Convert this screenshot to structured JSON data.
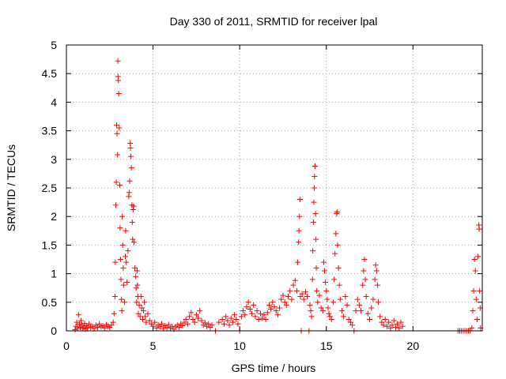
{
  "chart_data": {
    "type": "scatter",
    "title": "Day 330 of 2011, SRMTID for receiver lpal",
    "xlabel": "GPS time / hours",
    "ylabel": "SRMTID / TECUs",
    "xlim": [
      0,
      24
    ],
    "ylim": [
      0,
      5
    ],
    "xticks": [
      0,
      5,
      10,
      15,
      20
    ],
    "yticks": [
      0,
      0.5,
      1,
      1.5,
      2,
      2.5,
      3,
      3.5,
      4,
      4.5,
      5
    ],
    "ytick_labels": [
      "0",
      "0.5",
      "1",
      "1.5",
      "2",
      "2.5",
      "3",
      "3.5",
      "4",
      "4.5",
      "5"
    ],
    "grid": true,
    "marker": "+",
    "color": "#ff0000",
    "series": [
      {
        "name": "SRMTID",
        "points": [
          [
            0.5,
            0.02
          ],
          [
            0.55,
            0.08
          ],
          [
            0.6,
            0.15
          ],
          [
            0.65,
            0.05
          ],
          [
            0.7,
            0.28
          ],
          [
            0.75,
            0.12
          ],
          [
            0.8,
            0.06
          ],
          [
            0.85,
            0.18
          ],
          [
            0.9,
            0.1
          ],
          [
            0.95,
            0.04
          ],
          [
            1.0,
            0.07
          ],
          [
            1.05,
            0.13
          ],
          [
            1.1,
            0.03
          ],
          [
            1.15,
            0.09
          ],
          [
            1.2,
            0.05
          ],
          [
            1.3,
            0.12
          ],
          [
            1.4,
            0.06
          ],
          [
            1.5,
            0.08
          ],
          [
            1.6,
            0.04
          ],
          [
            1.7,
            0.1
          ],
          [
            1.8,
            0.06
          ],
          [
            1.9,
            0.12
          ],
          [
            2.0,
            0.07
          ],
          [
            2.1,
            0.09
          ],
          [
            2.2,
            0.05
          ],
          [
            2.3,
            0.11
          ],
          [
            2.4,
            0.08
          ],
          [
            2.5,
            0.06
          ],
          [
            2.6,
            0.1
          ],
          [
            2.7,
            0.15
          ],
          [
            2.75,
            0.3
          ],
          [
            2.8,
            0.6
          ],
          [
            2.82,
            1.2
          ],
          [
            2.85,
            2.2
          ],
          [
            2.88,
            2.6
          ],
          [
            2.9,
            3.6
          ],
          [
            2.92,
            3.45
          ],
          [
            2.95,
            3.08
          ],
          [
            2.97,
            4.72
          ],
          [
            2.98,
            4.45
          ],
          [
            3.0,
            4.38
          ],
          [
            3.02,
            4.15
          ],
          [
            3.05,
            3.55
          ],
          [
            3.08,
            2.55
          ],
          [
            3.1,
            1.8
          ],
          [
            3.12,
            1.25
          ],
          [
            3.15,
            0.9
          ],
          [
            3.18,
            0.55
          ],
          [
            3.2,
            0.35
          ],
          [
            3.22,
            2.0
          ],
          [
            3.25,
            1.5
          ],
          [
            3.28,
            1.1
          ],
          [
            3.3,
            0.8
          ],
          [
            3.35,
            0.5
          ],
          [
            3.4,
            1.3
          ],
          [
            3.42,
            1.75
          ],
          [
            3.45,
            1.2
          ],
          [
            3.5,
            0.85
          ],
          [
            3.55,
            1.4
          ],
          [
            3.6,
            2.35
          ],
          [
            3.62,
            2.42
          ],
          [
            3.65,
            2.62
          ],
          [
            3.68,
            3.28
          ],
          [
            3.7,
            3.2
          ],
          [
            3.72,
            3.05
          ],
          [
            3.75,
            2.85
          ],
          [
            3.78,
            2.2
          ],
          [
            3.8,
            1.9
          ],
          [
            3.82,
            1.6
          ],
          [
            3.85,
            2.12
          ],
          [
            3.88,
            2.18
          ],
          [
            3.9,
            1.55
          ],
          [
            3.95,
            1.1
          ],
          [
            4.0,
            0.95
          ],
          [
            4.02,
            0.75
          ],
          [
            4.05,
            0.5
          ],
          [
            4.08,
            1.05
          ],
          [
            4.1,
            0.8
          ],
          [
            4.12,
            0.6
          ],
          [
            4.15,
            0.3
          ],
          [
            4.2,
            0.45
          ],
          [
            4.25,
            0.25
          ],
          [
            4.3,
            0.6
          ],
          [
            4.35,
            0.4
          ],
          [
            4.4,
            0.2
          ],
          [
            4.45,
            0.35
          ],
          [
            4.5,
            0.5
          ],
          [
            4.55,
            0.25
          ],
          [
            4.6,
            0.15
          ],
          [
            4.7,
            0.3
          ],
          [
            4.8,
            0.18
          ],
          [
            4.9,
            0.12
          ],
          [
            5.0,
            0.08
          ],
          [
            5.1,
            0.15
          ],
          [
            5.2,
            0.05
          ],
          [
            5.3,
            0.1
          ],
          [
            5.4,
            0.07
          ],
          [
            5.5,
            0.12
          ],
          [
            5.6,
            0.04
          ],
          [
            5.7,
            0.09
          ],
          [
            5.8,
            0.06
          ],
          [
            5.9,
            0.11
          ],
          [
            6.0,
            0.05
          ],
          [
            6.1,
            0.08
          ],
          [
            6.2,
            0.03
          ],
          [
            6.3,
            0.07
          ],
          [
            6.4,
            0.1
          ],
          [
            6.5,
            0.06
          ],
          [
            6.6,
            0.12
          ],
          [
            6.7,
            0.09
          ],
          [
            6.8,
            0.15
          ],
          [
            6.9,
            0.2
          ],
          [
            7.0,
            0.12
          ],
          [
            7.1,
            0.25
          ],
          [
            7.2,
            0.32
          ],
          [
            7.3,
            0.2
          ],
          [
            7.4,
            0.15
          ],
          [
            7.5,
            0.28
          ],
          [
            7.6,
            0.22
          ],
          [
            7.7,
            0.35
          ],
          [
            7.8,
            0.18
          ],
          [
            7.9,
            0.1
          ],
          [
            8.0,
            0.14
          ],
          [
            8.1,
            0.08
          ],
          [
            8.2,
            0.12
          ],
          [
            8.3,
            0.06
          ],
          [
            8.4,
            0.1
          ],
          [
            8.6,
            0.0
          ],
          [
            8.8,
            0.15
          ],
          [
            9.0,
            0.2
          ],
          [
            9.1,
            0.12
          ],
          [
            9.2,
            0.25
          ],
          [
            9.3,
            0.18
          ],
          [
            9.4,
            0.1
          ],
          [
            9.5,
            0.22
          ],
          [
            9.6,
            0.15
          ],
          [
            9.7,
            0.28
          ],
          [
            9.8,
            0.2
          ],
          [
            9.9,
            0.12
          ],
          [
            10.0,
            0.0
          ],
          [
            10.1,
            0.25
          ],
          [
            10.2,
            0.35
          ],
          [
            10.3,
            0.28
          ],
          [
            10.4,
            0.42
          ],
          [
            10.5,
            0.5
          ],
          [
            10.6,
            0.38
          ],
          [
            10.7,
            0.3
          ],
          [
            10.8,
            0.45
          ],
          [
            10.9,
            0.25
          ],
          [
            11.0,
            0.35
          ],
          [
            11.1,
            0.2
          ],
          [
            11.2,
            0.3
          ],
          [
            11.3,
            0.22
          ],
          [
            11.4,
            0.28
          ],
          [
            11.5,
            0.2
          ],
          [
            11.6,
            0.32
          ],
          [
            11.7,
            0.45
          ],
          [
            11.8,
            0.38
          ],
          [
            11.9,
            0.5
          ],
          [
            12.0,
            0.42
          ],
          [
            12.1,
            0.35
          ],
          [
            12.2,
            0.28
          ],
          [
            12.3,
            0.4
          ],
          [
            12.4,
            0.55
          ],
          [
            12.5,
            0.62
          ],
          [
            12.6,
            0.5
          ],
          [
            12.7,
            0.45
          ],
          [
            12.8,
            0.6
          ],
          [
            12.9,
            0.7
          ],
          [
            13.0,
            0.55
          ],
          [
            13.1,
            0.8
          ],
          [
            13.2,
            0.88
          ],
          [
            13.3,
            0.7
          ],
          [
            13.35,
            1.2
          ],
          [
            13.4,
            1.55
          ],
          [
            13.42,
            1.75
          ],
          [
            13.45,
            2.0
          ],
          [
            13.48,
            2.3
          ],
          [
            13.5,
            0.6
          ],
          [
            13.55,
            0.0
          ],
          [
            13.6,
            0.65
          ],
          [
            13.7,
            0.55
          ],
          [
            13.8,
            0.68
          ],
          [
            13.9,
            0.6
          ],
          [
            14.0,
            0.0
          ],
          [
            14.05,
            0.45
          ],
          [
            14.1,
            0.35
          ],
          [
            14.15,
            0.25
          ],
          [
            14.2,
            0.9
          ],
          [
            14.22,
            1.4
          ],
          [
            14.25,
            1.9
          ],
          [
            14.28,
            2.25
          ],
          [
            14.3,
            2.5
          ],
          [
            14.32,
            2.7
          ],
          [
            14.35,
            2.88
          ],
          [
            14.38,
            2.05
          ],
          [
            14.4,
            1.6
          ],
          [
            14.42,
            1.1
          ],
          [
            14.45,
            0.7
          ],
          [
            14.5,
            0.5
          ],
          [
            14.6,
            0.62
          ],
          [
            14.7,
            0.4
          ],
          [
            14.8,
            0.35
          ],
          [
            14.85,
            1.2
          ],
          [
            14.9,
            1.05
          ],
          [
            14.95,
            0.85
          ],
          [
            15.0,
            0.7
          ],
          [
            15.05,
            0.55
          ],
          [
            15.1,
            0.4
          ],
          [
            15.15,
            0.3
          ],
          [
            15.2,
            0.25
          ],
          [
            15.3,
            0.2
          ],
          [
            15.4,
            0.5
          ],
          [
            15.45,
            0.9
          ],
          [
            15.5,
            1.35
          ],
          [
            15.55,
            1.7
          ],
          [
            15.6,
            2.05
          ],
          [
            15.62,
            2.08
          ],
          [
            15.65,
            1.5
          ],
          [
            15.7,
            1.1
          ],
          [
            15.75,
            0.8
          ],
          [
            15.8,
            0.55
          ],
          [
            15.9,
            0.35
          ],
          [
            16.0,
            0.25
          ],
          [
            16.1,
            0.6
          ],
          [
            16.2,
            0.45
          ],
          [
            16.3,
            0.2
          ],
          [
            16.4,
            0.15
          ],
          [
            16.5,
            0.1
          ],
          [
            16.6,
            0.0
          ],
          [
            16.7,
            0.35
          ],
          [
            16.8,
            0.55
          ],
          [
            16.9,
            0.45
          ],
          [
            17.0,
            0.35
          ],
          [
            17.1,
            0.8
          ],
          [
            17.15,
            1.05
          ],
          [
            17.2,
            1.25
          ],
          [
            17.25,
            0.9
          ],
          [
            17.3,
            0.6
          ],
          [
            17.4,
            0.3
          ],
          [
            17.5,
            0.2
          ],
          [
            17.6,
            0.4
          ],
          [
            17.7,
            0.55
          ],
          [
            17.8,
            0.9
          ],
          [
            17.85,
            1.15
          ],
          [
            17.9,
            1.05
          ],
          [
            17.95,
            0.8
          ],
          [
            18.0,
            0.5
          ],
          [
            18.1,
            0.25
          ],
          [
            18.2,
            0.15
          ],
          [
            18.3,
            0.1
          ],
          [
            18.4,
            0.2
          ],
          [
            18.5,
            0.08
          ],
          [
            18.6,
            0.15
          ],
          [
            18.7,
            0.05
          ],
          [
            18.8,
            0.1
          ],
          [
            18.9,
            0.18
          ],
          [
            19.0,
            0.06
          ],
          [
            19.1,
            0.12
          ],
          [
            19.2,
            0.05
          ],
          [
            19.3,
            0.15
          ],
          [
            19.4,
            0.08
          ],
          [
            22.6,
            0.0
          ],
          [
            22.7,
            0.0
          ],
          [
            22.8,
            0.0
          ],
          [
            22.9,
            0.0
          ],
          [
            23.0,
            0.0
          ],
          [
            23.1,
            0.0
          ],
          [
            23.2,
            0.0
          ],
          [
            23.3,
            0.0
          ],
          [
            23.4,
            0.05
          ],
          [
            23.45,
            0.35
          ],
          [
            23.5,
            0.7
          ],
          [
            23.55,
            1.25
          ],
          [
            23.6,
            1.05
          ],
          [
            23.65,
            0.55
          ],
          [
            23.7,
            0.2
          ],
          [
            23.75,
            1.3
          ],
          [
            23.8,
            1.85
          ],
          [
            23.82,
            1.78
          ],
          [
            23.85,
            0.7
          ],
          [
            23.88,
            0.4
          ],
          [
            23.9,
            0.05
          ]
        ]
      }
    ]
  }
}
